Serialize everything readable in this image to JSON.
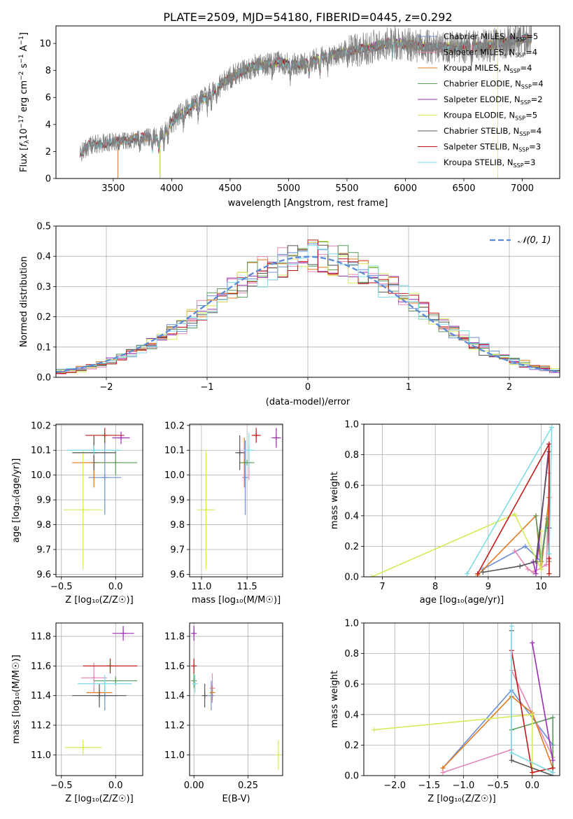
{
  "figure_title": "PLATE=2509, MJD=54180, FIBERID=0445, z=0.292",
  "colors": {
    "Chabrier MILES": "#6b8fd6",
    "Salpeter MILES": "#e886b6",
    "Kroupa MILES": "#e07b1f",
    "Chabrier ELODIE": "#5c9c5c",
    "Salpeter ELODIE": "#9b2fb3",
    "Kroupa ELODIE": "#d6ea5a",
    "Chabrier STELIB": "#555555",
    "Salpeter STELIB": "#c21a1a",
    "Kroupa STELIB": "#7fdbe6",
    "data": "#808080",
    "normal": "#5b8bd6"
  },
  "chart_data": [
    {
      "type": "line",
      "id": "spectrum",
      "title": "PLATE=2509, MJD=54180, FIBERID=0445, z=0.292",
      "xlabel": "wavelength [Angstrom, rest frame]",
      "ylabel_main": "Flux [",
      "ylabel_f": "f",
      "ylabel_lambda": "λ",
      "ylabel_rest": "10",
      "ylabel_exp1": "−17",
      "ylabel_unit": " erg cm",
      "ylabel_exp2": "−2",
      "ylabel_s": " s",
      "ylabel_exp3": "−1",
      "ylabel_A": " A",
      "ylabel_exp4": "−1",
      "ylabel_end": "]",
      "xlim": [
        3010,
        7320
      ],
      "ylim": [
        0,
        11.3
      ],
      "xticks": [
        3500,
        4000,
        4500,
        5000,
        5500,
        6000,
        6500,
        7000
      ],
      "yticks": [
        0,
        2,
        4,
        6,
        8,
        10
      ],
      "legend_position": "right",
      "legend": [
        {
          "name": "Chabrier MILES",
          "nssp": "5"
        },
        {
          "name": "Salpeter MILES",
          "nssp": "4"
        },
        {
          "name": "Kroupa MILES",
          "nssp": "4"
        },
        {
          "name": "Chabrier ELODIE",
          "nssp": "4"
        },
        {
          "name": "Salpeter ELODIE",
          "nssp": "2"
        },
        {
          "name": "Kroupa ELODIE",
          "nssp": "5"
        },
        {
          "name": "Chabrier STELIB",
          "nssp": "4"
        },
        {
          "name": "Salpeter STELIB",
          "nssp": "3"
        },
        {
          "name": "Kroupa STELIB",
          "nssp": "3"
        }
      ],
      "continuum_points": [
        [
          3215,
          1.8
        ],
        [
          3300,
          2.5
        ],
        [
          3500,
          2.7
        ],
        [
          3700,
          3.0
        ],
        [
          3900,
          3.1
        ],
        [
          3970,
          3.8
        ],
        [
          4050,
          4.6
        ],
        [
          4300,
          6.1
        ],
        [
          4500,
          7.5
        ],
        [
          4700,
          8.3
        ],
        [
          4900,
          8.6
        ],
        [
          5100,
          8.4
        ],
        [
          5300,
          9.0
        ],
        [
          5500,
          9.4
        ],
        [
          5700,
          9.7
        ],
        [
          5900,
          10.1
        ],
        [
          6100,
          9.8
        ],
        [
          6300,
          9.7
        ],
        [
          6500,
          9.8
        ],
        [
          6700,
          9.8
        ],
        [
          6900,
          10.2
        ],
        [
          7080,
          10.4
        ]
      ],
      "model_start_wavelengths": {
        "Chabrier MILES": 3540,
        "Salpeter MILES": 3540,
        "Kroupa MILES": 3540,
        "Chabrier ELODIE": 3900,
        "Salpeter ELODIE": 3900,
        "Kroupa ELODIE": 3900,
        "Chabrier STELIB": 3215,
        "Salpeter STELIB": 3215,
        "Kroupa STELIB": 3215
      }
    },
    {
      "type": "histogram",
      "id": "residuals",
      "xlabel": "(data-model)/error",
      "ylabel": "Normed distribution",
      "xlim": [
        -2.5,
        2.5
      ],
      "ylim": [
        0,
        0.5
      ],
      "xticks": [
        -2,
        -1,
        0,
        1,
        2
      ],
      "yticks": [
        0,
        0.1,
        0.2,
        0.3,
        0.4,
        0.5
      ],
      "bin_width": 0.1,
      "legend_position": "top-right",
      "legend": "𝒩(0, 1)",
      "series_names": [
        "Chabrier MILES",
        "Salpeter MILES",
        "Kroupa MILES",
        "Chabrier ELODIE",
        "Salpeter ELODIE",
        "Kroupa ELODIE",
        "Chabrier STELIB",
        "Salpeter STELIB",
        "Kroupa STELIB"
      ]
    },
    {
      "type": "scatter",
      "id": "age_vs_Z",
      "xlabel": "Z [log₁₀(Z/Z☉)]",
      "ylabel": "age  [log₁₀(age/yr)]",
      "xlim": [
        -0.55,
        0.25
      ],
      "ylim": [
        9.59,
        10.205
      ],
      "xticks": [
        -0.5,
        0.0
      ],
      "yticks": [
        9.6,
        9.7,
        9.8,
        9.9,
        10.0,
        10.1,
        10.2
      ],
      "points": [
        {
          "series": "Chabrier MILES",
          "x": -0.1,
          "y": 9.99,
          "xerr": 0.15,
          "yerr": 0.15
        },
        {
          "series": "Salpeter MILES",
          "x": -0.2,
          "y": 10.05,
          "xerr": 0.12,
          "yerr": 0.07
        },
        {
          "series": "Kroupa MILES",
          "x": -0.2,
          "y": 10.05,
          "xerr": 0.2,
          "yerr": 0.1
        },
        {
          "series": "Chabrier ELODIE",
          "x": 0.0,
          "y": 10.05,
          "xerr": 0.2,
          "yerr": 0.05
        },
        {
          "series": "Salpeter ELODIE",
          "x": 0.05,
          "y": 10.15,
          "xerr": 0.08,
          "yerr": 0.025
        },
        {
          "series": "Kroupa ELODIE",
          "x": -0.3,
          "y": 9.86,
          "xerr": 0.18,
          "yerr": 0.24
        },
        {
          "series": "Chabrier STELIB",
          "x": -0.2,
          "y": 10.09,
          "xerr": 0.2,
          "yerr": 0.07
        },
        {
          "series": "Salpeter STELIB",
          "x": -0.1,
          "y": 10.16,
          "xerr": 0.18,
          "yerr": 0.03
        },
        {
          "series": "Kroupa STELIB",
          "x": -0.2,
          "y": 10.1,
          "xerr": 0.25,
          "yerr": 0.02
        }
      ]
    },
    {
      "type": "scatter",
      "id": "age_vs_mass",
      "xlabel": "mass [log₁₀(M/M☉)]",
      "ylabel": "",
      "xlim": [
        10.87,
        11.89
      ],
      "ylim": [
        9.59,
        10.205
      ],
      "xticks": [
        11.0,
        11.5
      ],
      "yticks": [
        9.6,
        9.7,
        9.8,
        9.9,
        10.0,
        10.1,
        10.2
      ],
      "points": [
        {
          "series": "Chabrier MILES",
          "x": 11.48,
          "y": 9.99,
          "xerr": 0.0,
          "yerr": 0.15
        },
        {
          "series": "Salpeter MILES",
          "x": 11.52,
          "y": 10.05,
          "xerr": 0.0,
          "yerr": 0.07
        },
        {
          "series": "Kroupa MILES",
          "x": 11.47,
          "y": 10.05,
          "xerr": 0.0,
          "yerr": 0.1
        },
        {
          "series": "Chabrier ELODIE",
          "x": 11.5,
          "y": 10.05,
          "xerr": 0.08,
          "yerr": 0.0
        },
        {
          "series": "Salpeter ELODIE",
          "x": 11.82,
          "y": 10.15,
          "xerr": 0.05,
          "yerr": 0.04
        },
        {
          "series": "Kroupa ELODIE",
          "x": 11.05,
          "y": 9.86,
          "xerr": 0.1,
          "yerr": 0.24
        },
        {
          "series": "Chabrier STELIB",
          "x": 11.42,
          "y": 10.09,
          "xerr": 0.05,
          "yerr": 0.07
        },
        {
          "series": "Salpeter STELIB",
          "x": 11.6,
          "y": 10.16,
          "xerr": 0.05,
          "yerr": 0.03
        },
        {
          "series": "Kroupa STELIB",
          "x": 11.52,
          "y": 10.1,
          "xerr": 0.06,
          "yerr": 0.07
        }
      ]
    },
    {
      "type": "line",
      "id": "weight_vs_age",
      "xlabel": "age  [log₁₀(age/yr)]",
      "ylabel": "mass weight",
      "xlim": [
        6.65,
        10.35
      ],
      "ylim": [
        0,
        1.0
      ],
      "xticks": [
        7,
        8,
        9,
        10
      ],
      "yticks": [
        0.0,
        0.2,
        0.4,
        0.6,
        0.8,
        1.0
      ],
      "series": [
        {
          "name": "Chabrier MILES",
          "points": [
            [
              8.9,
              0.05
            ],
            [
              9.7,
              0.2
            ],
            [
              10.0,
              0.1
            ],
            [
              10.15,
              0.52
            ],
            [
              10.15,
              0.15
            ]
          ]
        },
        {
          "name": "Salpeter MILES",
          "points": [
            [
              9.5,
              0.17
            ],
            [
              9.75,
              0.05
            ],
            [
              9.85,
              0.03
            ],
            [
              10.1,
              0.08
            ],
            [
              10.15,
              0.68
            ]
          ]
        },
        {
          "name": "Kroupa MILES",
          "points": [
            [
              8.8,
              0.01
            ],
            [
              9.9,
              0.4
            ],
            [
              10.0,
              0.05
            ],
            [
              10.15,
              0.52
            ]
          ]
        },
        {
          "name": "Chabrier ELODIE",
          "points": [
            [
              9.9,
              0.4
            ],
            [
              10.0,
              0.1
            ],
            [
              10.12,
              0.38
            ],
            [
              10.15,
              0.1
            ]
          ]
        },
        {
          "name": "Salpeter ELODIE",
          "points": [
            [
              9.85,
              0.1
            ],
            [
              9.9,
              0.02
            ],
            [
              10.15,
              0.87
            ]
          ]
        },
        {
          "name": "Kroupa ELODIE",
          "points": [
            [
              6.8,
              0.0
            ],
            [
              9.5,
              0.41
            ],
            [
              10.0,
              0.05
            ],
            [
              10.0,
              0.3
            ]
          ]
        },
        {
          "name": "Chabrier STELIB",
          "points": [
            [
              8.9,
              0.03
            ],
            [
              9.6,
              0.07
            ],
            [
              9.9,
              0.1
            ],
            [
              10.15,
              0.82
            ],
            [
              10.15,
              0.32
            ]
          ]
        },
        {
          "name": "Salpeter STELIB",
          "points": [
            [
              8.8,
              0.02
            ],
            [
              10.15,
              0.87
            ],
            [
              10.15,
              0.12
            ],
            [
              10.15,
              0.02
            ]
          ]
        },
        {
          "name": "Kroupa STELIB",
          "points": [
            [
              8.6,
              0.02
            ],
            [
              10.2,
              0.98
            ],
            [
              10.15,
              0.15
            ]
          ]
        }
      ]
    },
    {
      "type": "scatter",
      "id": "mass_vs_Z",
      "xlabel": "Z [log₁₀(Z/Z☉)]",
      "ylabel": "mass [log₁₀(M/M☉)]",
      "xlim": [
        -0.55,
        0.25
      ],
      "ylim": [
        10.86,
        11.89
      ],
      "xticks": [
        -0.5,
        0.0
      ],
      "yticks": [
        11.0,
        11.2,
        11.4,
        11.6,
        11.8
      ],
      "points": [
        {
          "series": "Chabrier MILES",
          "x": -0.1,
          "y": 11.4,
          "xerr": 0.12,
          "yerr": 0.1
        },
        {
          "series": "Salpeter MILES",
          "x": -0.2,
          "y": 11.52,
          "xerr": 0.12,
          "yerr": 0.1
        },
        {
          "series": "Kroupa MILES",
          "x": -0.15,
          "y": 11.42,
          "xerr": 0.12,
          "yerr": 0.05
        },
        {
          "series": "Chabrier ELODIE",
          "x": 0.0,
          "y": 11.5,
          "xerr": 0.2,
          "yerr": 0.03
        },
        {
          "series": "Salpeter ELODIE",
          "x": 0.07,
          "y": 11.82,
          "xerr": 0.1,
          "yerr": 0.05
        },
        {
          "series": "Kroupa ELODIE",
          "x": -0.3,
          "y": 11.05,
          "xerr": 0.17,
          "yerr": 0.05
        },
        {
          "series": "Chabrier STELIB",
          "x": -0.15,
          "y": 11.4,
          "xerr": 0.25,
          "yerr": 0.08
        },
        {
          "series": "Salpeter STELIB",
          "x": -0.05,
          "y": 11.6,
          "xerr": 0.25,
          "yerr": 0.05
        },
        {
          "series": "Kroupa STELIB",
          "x": -0.1,
          "y": 11.48,
          "xerr": 0.25,
          "yerr": 0.06
        }
      ]
    },
    {
      "type": "scatter",
      "id": "mass_vs_ebv",
      "xlabel": "E(B-V)",
      "ylabel": "",
      "xlim": [
        -0.02,
        0.41
      ],
      "ylim": [
        10.86,
        11.89
      ],
      "xticks": [
        0.0,
        0.25
      ],
      "xtick_labels": [
        "0.00",
        "0.25"
      ],
      "yticks": [
        11.0,
        11.2,
        11.4,
        11.6,
        11.8
      ],
      "points": [
        {
          "series": "Chabrier MILES",
          "x": 0.08,
          "y": 11.4,
          "xerr": 0,
          "yerr": 0.1
        },
        {
          "series": "Salpeter MILES",
          "x": 0.085,
          "y": 11.45,
          "xerr": 0,
          "yerr": 0.1
        },
        {
          "series": "Kroupa MILES",
          "x": 0.085,
          "y": 11.42,
          "xerr": 0,
          "yerr": 0.05
        },
        {
          "series": "Chabrier ELODIE",
          "x": 0.0,
          "y": 11.5,
          "xerr": 0,
          "yerr": 0.05
        },
        {
          "series": "Salpeter ELODIE",
          "x": 0.0,
          "y": 11.82,
          "xerr": 0,
          "yerr": 0.05
        },
        {
          "series": "Kroupa ELODIE",
          "x": 0.39,
          "y": 11.0,
          "xerr": 0,
          "yerr": 0.1
        },
        {
          "series": "Chabrier STELIB",
          "x": 0.05,
          "y": 11.4,
          "xerr": 0,
          "yerr": 0.08
        },
        {
          "series": "Salpeter STELIB",
          "x": 0.0,
          "y": 11.6,
          "xerr": 0,
          "yerr": 0.05
        },
        {
          "series": "Kroupa STELIB",
          "x": 0.005,
          "y": 11.48,
          "xerr": 0,
          "yerr": 0.06
        }
      ]
    },
    {
      "type": "line",
      "id": "weight_vs_Z",
      "xlabel": "Z [log₁₀(Z/Z☉)]",
      "ylabel": "mass weight",
      "xlim": [
        -2.45,
        0.4
      ],
      "ylim": [
        0,
        1.0
      ],
      "xticks": [
        -2.0,
        -1.5,
        -1.0,
        -0.5,
        0.0
      ],
      "yticks": [
        0.0,
        0.2,
        0.4,
        0.6,
        0.8,
        1.0
      ],
      "series": [
        {
          "name": "Chabrier MILES",
          "points": [
            [
              -1.3,
              0.05
            ],
            [
              -0.3,
              0.56
            ],
            [
              0.3,
              0.2
            ]
          ]
        },
        {
          "name": "Salpeter MILES",
          "points": [
            [
              -1.3,
              0.02
            ],
            [
              -0.3,
              0.17
            ],
            [
              -0.3,
              0.69
            ],
            [
              0.3,
              0.12
            ]
          ]
        },
        {
          "name": "Kroupa MILES",
          "points": [
            [
              -1.3,
              0.05
            ],
            [
              -0.3,
              0.52
            ],
            [
              0.0,
              0.41
            ],
            [
              0.3,
              0.05
            ]
          ]
        },
        {
          "name": "Chabrier ELODIE",
          "points": [
            [
              -0.3,
              0.3
            ],
            [
              0.3,
              0.38
            ],
            [
              0.3,
              0.02
            ]
          ]
        },
        {
          "name": "Salpeter ELODIE",
          "points": [
            [
              0.0,
              0.87
            ],
            [
              0.3,
              0.1
            ]
          ]
        },
        {
          "name": "Kroupa ELODIE",
          "points": [
            [
              -2.3,
              0.3
            ],
            [
              0.0,
              0.4
            ],
            [
              0.0,
              0.0
            ]
          ]
        },
        {
          "name": "Chabrier STELIB",
          "points": [
            [
              -0.3,
              0.95
            ],
            [
              -0.3,
              0.1
            ],
            [
              0.3,
              0.0
            ]
          ]
        },
        {
          "name": "Salpeter STELIB",
          "points": [
            [
              -0.3,
              0.82
            ],
            [
              0.0,
              0.02
            ],
            [
              0.3,
              0.05
            ]
          ]
        },
        {
          "name": "Kroupa STELIB",
          "points": [
            [
              -0.3,
              0.98
            ],
            [
              -0.3,
              0.15
            ],
            [
              0.3,
              0.02
            ]
          ]
        }
      ]
    }
  ]
}
